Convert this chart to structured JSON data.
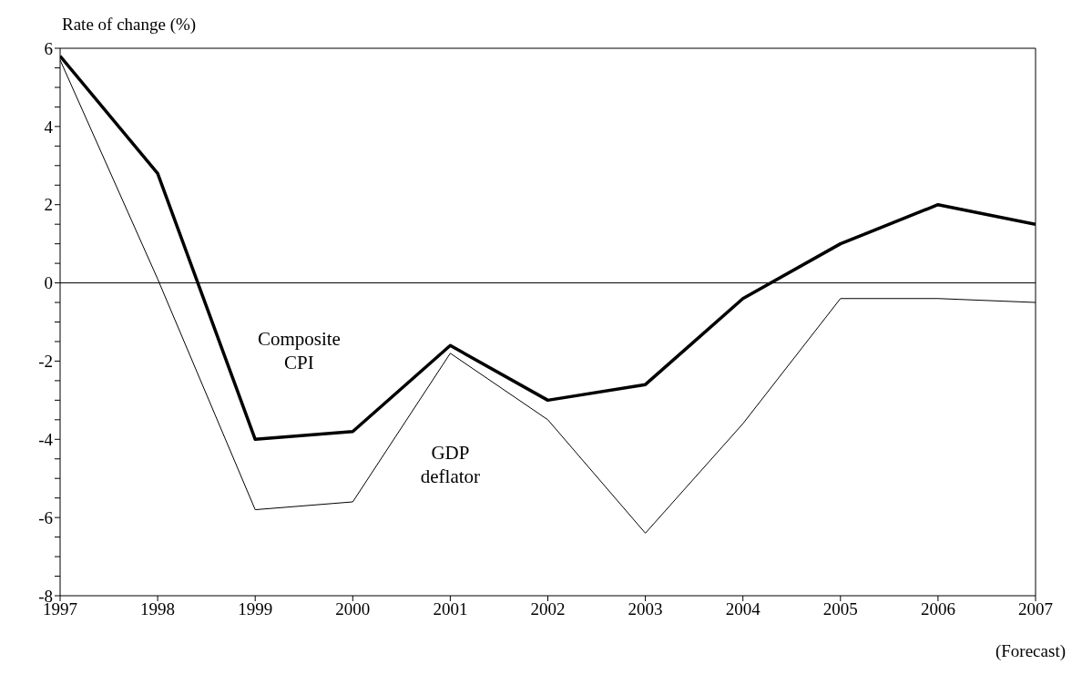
{
  "chart_data": {
    "type": "line",
    "ylabel": "Rate of change (%)",
    "x": [
      1997,
      1998,
      1999,
      2000,
      2001,
      2002,
      2003,
      2004,
      2005,
      2006,
      2007
    ],
    "xlim": [
      1997,
      2007
    ],
    "xticks": [
      1997,
      1998,
      1999,
      2000,
      2001,
      2002,
      2003,
      2004,
      2005,
      2006,
      2007
    ],
    "ylim": [
      -8,
      6
    ],
    "yticks": [
      -8,
      {
        "value": -7.5,
        "label": null
      },
      {
        "value": -7,
        "label": null
      },
      {
        "value": -6.5,
        "label": null
      },
      -6,
      {
        "value": -5.5,
        "label": null
      },
      {
        "value": -5,
        "label": null
      },
      {
        "value": -4.5,
        "label": null
      },
      -4,
      {
        "value": -3.5,
        "label": null
      },
      {
        "value": -3,
        "label": null
      },
      {
        "value": -2.5,
        "label": null
      },
      -2,
      {
        "value": -1.5,
        "label": null
      },
      {
        "value": -1,
        "label": null
      },
      {
        "value": -0.5,
        "label": null
      },
      0,
      {
        "value": 0.5,
        "label": null
      },
      {
        "value": 1,
        "label": null
      },
      {
        "value": 1.5,
        "label": null
      },
      2,
      {
        "value": 2.5,
        "label": null
      },
      {
        "value": 3,
        "label": null
      },
      {
        "value": 3.5,
        "label": null
      },
      4,
      {
        "value": 4.5,
        "label": null
      },
      {
        "value": 5,
        "label": null
      },
      {
        "value": 5.5,
        "label": null
      },
      6
    ],
    "series": [
      {
        "name": "Composite\nCPI",
        "color": "#000000",
        "values": [
          5.8,
          2.8,
          -4.0,
          -3.8,
          -1.6,
          -3.0,
          -2.6,
          -0.4,
          1.0,
          2.0,
          1.5
        ]
      },
      {
        "name": "GDP\ndeflator",
        "color": "#000000",
        "values": [
          5.7,
          0.1,
          -5.8,
          -5.6,
          -1.8,
          -3.5,
          -6.4,
          -3.6,
          -0.4,
          -0.4,
          -0.5
        ]
      }
    ],
    "ref_lines": [
      {
        "axis": "y",
        "value": 0,
        "label": null,
        "color": "#000000"
      }
    ],
    "annotations": [
      "(Forecast)"
    ],
    "grid": false,
    "legend": false,
    "marker": "none",
    "line_style": "solid"
  }
}
